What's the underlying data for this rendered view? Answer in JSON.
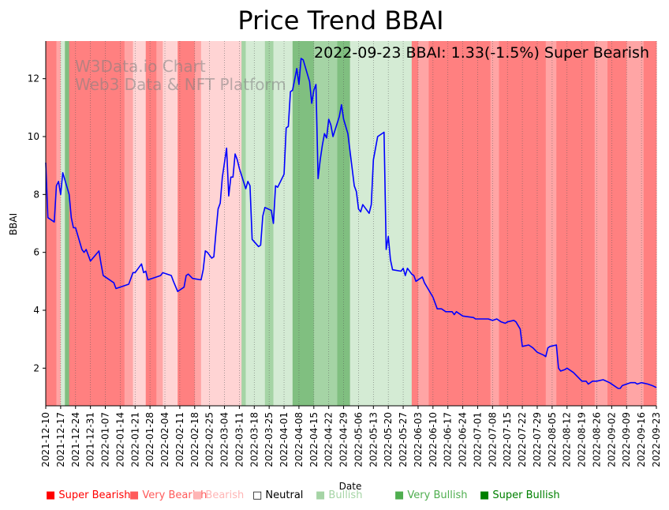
{
  "chart_data": {
    "type": "line",
    "title": "Price Trend BBAI",
    "xlabel": "Date",
    "ylabel": "BBAI",
    "ylim": [
      0.7,
      13.3
    ],
    "yticks": [
      2,
      4,
      6,
      8,
      10,
      12
    ],
    "annotation": "2022-09-23 BBAI: 1.33(-1.5%) Super Bearish",
    "watermark": [
      "W3Data.io Chart",
      "Web3 Data & NFT Platform"
    ],
    "x_start": "2021-12-10",
    "x_end": "2022-09-23",
    "xtick_labels": [
      "2021-12-10",
      "2021-12-17",
      "2021-12-24",
      "2021-12-31",
      "2022-01-07",
      "2022-01-14",
      "2022-01-21",
      "2022-01-28",
      "2022-02-04",
      "2022-02-11",
      "2022-02-18",
      "2022-02-25",
      "2022-03-04",
      "2022-03-11",
      "2022-03-18",
      "2022-03-25",
      "2022-04-01",
      "2022-04-08",
      "2022-04-15",
      "2022-04-22",
      "2022-04-29",
      "2022-05-06",
      "2022-05-13",
      "2022-05-20",
      "2022-05-27",
      "2022-06-03",
      "2022-06-10",
      "2022-06-17",
      "2022-06-24",
      "2022-07-01",
      "2022-07-08",
      "2022-07-15",
      "2022-07-22",
      "2022-07-29",
      "2022-08-05",
      "2022-08-12",
      "2022-08-19",
      "2022-08-26",
      "2022-09-02",
      "2022-09-09",
      "2022-09-16",
      "2022-09-23"
    ],
    "sentiment_colors": {
      "super_bearish": "#ff8080",
      "very_bearish": "#ffa5a5",
      "bearish": "#ffd4d4",
      "neutral": "#ffffff",
      "bullish": "#d4ebd4",
      "very_bullish": "#a5d4a5",
      "super_bullish": "#80bf80"
    },
    "sentiment_bands": [
      {
        "start": "2021-12-10",
        "end": "2021-12-15",
        "sentiment": "super_bearish"
      },
      {
        "start": "2021-12-15",
        "end": "2021-12-17",
        "sentiment": "very_bearish"
      },
      {
        "start": "2021-12-17",
        "end": "2021-12-19",
        "sentiment": "bullish"
      },
      {
        "start": "2021-12-19",
        "end": "2021-12-21",
        "sentiment": "super_bullish"
      },
      {
        "start": "2021-12-21",
        "end": "2022-01-16",
        "sentiment": "super_bearish"
      },
      {
        "start": "2022-01-16",
        "end": "2022-01-20",
        "sentiment": "very_bearish"
      },
      {
        "start": "2022-01-20",
        "end": "2022-01-26",
        "sentiment": "bearish"
      },
      {
        "start": "2022-01-26",
        "end": "2022-01-31",
        "sentiment": "super_bearish"
      },
      {
        "start": "2022-01-31",
        "end": "2022-02-03",
        "sentiment": "very_bearish"
      },
      {
        "start": "2022-02-03",
        "end": "2022-02-10",
        "sentiment": "bearish"
      },
      {
        "start": "2022-02-10",
        "end": "2022-02-18",
        "sentiment": "super_bearish"
      },
      {
        "start": "2022-02-18",
        "end": "2022-02-21",
        "sentiment": "very_bearish"
      },
      {
        "start": "2022-02-21",
        "end": "2022-03-12",
        "sentiment": "bearish"
      },
      {
        "start": "2022-03-12",
        "end": "2022-03-14",
        "sentiment": "very_bullish"
      },
      {
        "start": "2022-03-14",
        "end": "2022-03-23",
        "sentiment": "bullish"
      },
      {
        "start": "2022-03-23",
        "end": "2022-03-27",
        "sentiment": "very_bullish"
      },
      {
        "start": "2022-03-27",
        "end": "2022-04-05",
        "sentiment": "bullish"
      },
      {
        "start": "2022-04-05",
        "end": "2022-04-15",
        "sentiment": "super_bullish"
      },
      {
        "start": "2022-04-15",
        "end": "2022-04-26",
        "sentiment": "very_bullish"
      },
      {
        "start": "2022-04-26",
        "end": "2022-05-02",
        "sentiment": "super_bullish"
      },
      {
        "start": "2022-05-02",
        "end": "2022-05-31",
        "sentiment": "bullish"
      },
      {
        "start": "2022-05-31",
        "end": "2022-06-03",
        "sentiment": "super_bearish"
      },
      {
        "start": "2022-06-03",
        "end": "2022-06-08",
        "sentiment": "very_bearish"
      },
      {
        "start": "2022-06-08",
        "end": "2022-07-07",
        "sentiment": "super_bearish"
      },
      {
        "start": "2022-07-07",
        "end": "2022-07-11",
        "sentiment": "very_bearish"
      },
      {
        "start": "2022-07-11",
        "end": "2022-08-02",
        "sentiment": "super_bearish"
      },
      {
        "start": "2022-08-02",
        "end": "2022-08-07",
        "sentiment": "very_bearish"
      },
      {
        "start": "2022-08-07",
        "end": "2022-08-25",
        "sentiment": "super_bearish"
      },
      {
        "start": "2022-08-25",
        "end": "2022-08-31",
        "sentiment": "very_bearish"
      },
      {
        "start": "2022-08-31",
        "end": "2022-09-09",
        "sentiment": "super_bearish"
      },
      {
        "start": "2022-09-09",
        "end": "2022-09-17",
        "sentiment": "very_bearish"
      },
      {
        "start": "2022-09-17",
        "end": "2022-09-23",
        "sentiment": "super_bearish"
      }
    ],
    "series": [
      {
        "name": "BBAI",
        "color": "#0000ff",
        "points": [
          [
            "2021-12-10",
            9.1
          ],
          [
            "2021-12-11",
            7.2
          ],
          [
            "2021-12-14",
            7.05
          ],
          [
            "2021-12-15",
            8.3
          ],
          [
            "2021-12-16",
            8.45
          ],
          [
            "2021-12-17",
            8.0
          ],
          [
            "2021-12-18",
            8.75
          ],
          [
            "2021-12-21",
            8.0
          ],
          [
            "2021-12-22",
            7.2
          ],
          [
            "2021-12-23",
            6.85
          ],
          [
            "2021-12-24",
            6.85
          ],
          [
            "2021-12-27",
            6.1
          ],
          [
            "2021-12-28",
            6.0
          ],
          [
            "2021-12-29",
            6.1
          ],
          [
            "2021-12-30",
            5.9
          ],
          [
            "2021-12-31",
            5.7
          ],
          [
            "2022-01-04",
            6.05
          ],
          [
            "2022-01-05",
            5.6
          ],
          [
            "2022-01-06",
            5.2
          ],
          [
            "2022-01-07",
            5.15
          ],
          [
            "2022-01-11",
            4.95
          ],
          [
            "2022-01-12",
            4.75
          ],
          [
            "2022-01-18",
            4.9
          ],
          [
            "2022-01-20",
            5.3
          ],
          [
            "2022-01-21",
            5.3
          ],
          [
            "2022-01-24",
            5.6
          ],
          [
            "2022-01-25",
            5.3
          ],
          [
            "2022-01-26",
            5.35
          ],
          [
            "2022-01-27",
            5.05
          ],
          [
            "2022-01-31",
            5.15
          ],
          [
            "2022-02-02",
            5.2
          ],
          [
            "2022-02-03",
            5.3
          ],
          [
            "2022-02-07",
            5.2
          ],
          [
            "2022-02-08",
            5.0
          ],
          [
            "2022-02-10",
            4.65
          ],
          [
            "2022-02-13",
            4.8
          ],
          [
            "2022-02-14",
            5.2
          ],
          [
            "2022-02-15",
            5.25
          ],
          [
            "2022-02-17",
            5.1
          ],
          [
            "2022-02-21",
            5.05
          ],
          [
            "2022-02-22",
            5.4
          ],
          [
            "2022-02-23",
            6.05
          ],
          [
            "2022-02-24",
            6.0
          ],
          [
            "2022-02-25",
            5.9
          ],
          [
            "2022-02-26",
            5.8
          ],
          [
            "2022-02-27",
            5.85
          ],
          [
            "2022-02-28",
            6.7
          ],
          [
            "2022-03-01",
            7.5
          ],
          [
            "2022-03-02",
            7.7
          ],
          [
            "2022-03-03",
            8.6
          ],
          [
            "2022-03-04",
            9.1
          ],
          [
            "2022-03-05",
            9.6
          ],
          [
            "2022-03-06",
            7.95
          ],
          [
            "2022-03-07",
            8.6
          ],
          [
            "2022-03-08",
            8.6
          ],
          [
            "2022-03-09",
            9.4
          ],
          [
            "2022-03-10",
            9.2
          ],
          [
            "2022-03-11",
            8.9
          ],
          [
            "2022-03-14",
            8.2
          ],
          [
            "2022-03-15",
            8.45
          ],
          [
            "2022-03-16",
            8.3
          ],
          [
            "2022-03-17",
            6.45
          ],
          [
            "2022-03-20",
            6.2
          ],
          [
            "2022-03-21",
            6.25
          ],
          [
            "2022-03-22",
            7.25
          ],
          [
            "2022-03-23",
            7.55
          ],
          [
            "2022-03-26",
            7.45
          ],
          [
            "2022-03-27",
            7.0
          ],
          [
            "2022-03-28",
            8.3
          ],
          [
            "2022-03-29",
            8.25
          ],
          [
            "2022-04-01",
            8.7
          ],
          [
            "2022-04-02",
            10.3
          ],
          [
            "2022-04-03",
            10.35
          ],
          [
            "2022-04-04",
            11.55
          ],
          [
            "2022-04-05",
            11.6
          ],
          [
            "2022-04-07",
            12.35
          ],
          [
            "2022-04-08",
            11.8
          ],
          [
            "2022-04-09",
            12.7
          ],
          [
            "2022-04-10",
            12.65
          ],
          [
            "2022-04-13",
            11.9
          ],
          [
            "2022-04-14",
            11.15
          ],
          [
            "2022-04-15",
            11.6
          ],
          [
            "2022-04-16",
            11.8
          ],
          [
            "2022-04-17",
            8.55
          ],
          [
            "2022-04-18",
            9.2
          ],
          [
            "2022-04-19",
            9.7
          ],
          [
            "2022-04-20",
            10.1
          ],
          [
            "2022-04-21",
            9.95
          ],
          [
            "2022-04-22",
            10.6
          ],
          [
            "2022-04-23",
            10.4
          ],
          [
            "2022-04-24",
            10.0
          ],
          [
            "2022-04-27",
            10.7
          ],
          [
            "2022-04-28",
            11.1
          ],
          [
            "2022-04-29",
            10.6
          ],
          [
            "2022-05-01",
            10.1
          ],
          [
            "2022-05-04",
            8.3
          ],
          [
            "2022-05-05",
            8.1
          ],
          [
            "2022-05-06",
            7.5
          ],
          [
            "2022-05-07",
            7.4
          ],
          [
            "2022-05-08",
            7.65
          ],
          [
            "2022-05-11",
            7.35
          ],
          [
            "2022-05-12",
            7.65
          ],
          [
            "2022-05-13",
            9.2
          ],
          [
            "2022-05-14",
            9.6
          ],
          [
            "2022-05-15",
            10.0
          ],
          [
            "2022-05-18",
            10.15
          ],
          [
            "2022-05-19",
            6.1
          ],
          [
            "2022-05-20",
            6.55
          ],
          [
            "2022-05-21",
            5.75
          ],
          [
            "2022-05-22",
            5.4
          ],
          [
            "2022-05-26",
            5.35
          ],
          [
            "2022-05-27",
            5.45
          ],
          [
            "2022-05-28",
            5.2
          ],
          [
            "2022-05-29",
            5.45
          ],
          [
            "2022-05-31",
            5.25
          ],
          [
            "2022-06-01",
            5.2
          ],
          [
            "2022-06-02",
            5.0
          ],
          [
            "2022-06-04",
            5.1
          ],
          [
            "2022-06-05",
            5.15
          ],
          [
            "2022-06-06",
            4.95
          ],
          [
            "2022-06-10",
            4.45
          ],
          [
            "2022-06-12",
            4.05
          ],
          [
            "2022-06-14",
            4.05
          ],
          [
            "2022-06-16",
            3.95
          ],
          [
            "2022-06-19",
            3.95
          ],
          [
            "2022-06-20",
            3.85
          ],
          [
            "2022-06-21",
            3.95
          ],
          [
            "2022-06-24",
            3.8
          ],
          [
            "2022-06-29",
            3.75
          ],
          [
            "2022-06-30",
            3.7
          ],
          [
            "2022-07-06",
            3.7
          ],
          [
            "2022-07-08",
            3.65
          ],
          [
            "2022-07-10",
            3.7
          ],
          [
            "2022-07-12",
            3.6
          ],
          [
            "2022-07-14",
            3.55
          ],
          [
            "2022-07-15",
            3.6
          ],
          [
            "2022-07-18",
            3.65
          ],
          [
            "2022-07-19",
            3.6
          ],
          [
            "2022-07-21",
            3.35
          ],
          [
            "2022-07-22",
            2.75
          ],
          [
            "2022-07-25",
            2.8
          ],
          [
            "2022-07-27",
            2.7
          ],
          [
            "2022-07-29",
            2.55
          ],
          [
            "2022-08-01",
            2.45
          ],
          [
            "2022-08-02",
            2.4
          ],
          [
            "2022-08-03",
            2.7
          ],
          [
            "2022-08-04",
            2.75
          ],
          [
            "2022-08-07",
            2.8
          ],
          [
            "2022-08-08",
            2.0
          ],
          [
            "2022-08-09",
            1.9
          ],
          [
            "2022-08-11",
            1.95
          ],
          [
            "2022-08-12",
            2.0
          ],
          [
            "2022-08-15",
            1.85
          ],
          [
            "2022-08-17",
            1.7
          ],
          [
            "2022-08-19",
            1.55
          ],
          [
            "2022-08-21",
            1.55
          ],
          [
            "2022-08-22",
            1.45
          ],
          [
            "2022-08-24",
            1.55
          ],
          [
            "2022-08-26",
            1.55
          ],
          [
            "2022-08-29",
            1.6
          ],
          [
            "2022-09-01",
            1.5
          ],
          [
            "2022-09-03",
            1.4
          ],
          [
            "2022-09-05",
            1.3
          ],
          [
            "2022-09-06",
            1.3
          ],
          [
            "2022-09-07",
            1.4
          ],
          [
            "2022-09-09",
            1.45
          ],
          [
            "2022-09-11",
            1.5
          ],
          [
            "2022-09-13",
            1.5
          ],
          [
            "2022-09-14",
            1.45
          ],
          [
            "2022-09-16",
            1.5
          ],
          [
            "2022-09-19",
            1.45
          ],
          [
            "2022-09-21",
            1.4
          ],
          [
            "2022-09-23",
            1.33
          ]
        ]
      }
    ],
    "legend": [
      {
        "label": "Super Bearish",
        "swatch": "■",
        "color": "#ff0000",
        "outline": false
      },
      {
        "label": "Very Bearish",
        "swatch": "■",
        "color": "#ff5a5a",
        "outline": false
      },
      {
        "label": "Bearish",
        "swatch": "■",
        "color": "#ffb5b5",
        "outline": false
      },
      {
        "label": "Neutral",
        "swatch": "□",
        "color": "#000000",
        "outline": true
      },
      {
        "label": "Bullish",
        "swatch": "■",
        "color": "#a5d4a5",
        "outline": false
      },
      {
        "label": "Very Bullish",
        "swatch": "■",
        "color": "#4fae4f",
        "outline": false
      },
      {
        "label": "Super Bullish",
        "swatch": "■",
        "color": "#008000",
        "outline": false
      }
    ]
  }
}
